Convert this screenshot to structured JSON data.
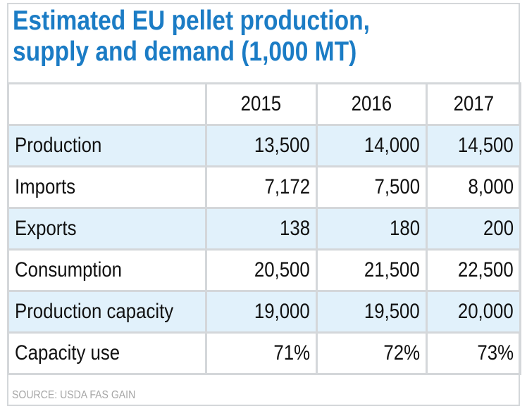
{
  "title": [
    "Estimated EU pellet production,",
    "supply and demand (1,000 MT)"
  ],
  "columns": [
    "",
    "2015",
    "2016",
    "2017"
  ],
  "rows": [
    {
      "label": "Production",
      "values": [
        "13,500",
        "14,000",
        "14,500"
      ]
    },
    {
      "label": "Imports",
      "values": [
        "7,172",
        "7,500",
        "8,000"
      ]
    },
    {
      "label": "Exports",
      "values": [
        "138",
        "180",
        "200"
      ]
    },
    {
      "label": "Consumption",
      "values": [
        "20,500",
        "21,500",
        "22,500"
      ]
    },
    {
      "label": "Production capacity",
      "values": [
        "19,000",
        "19,500",
        "20,000"
      ]
    },
    {
      "label": "Capacity use",
      "values": [
        "71%",
        "72%",
        "73%"
      ]
    }
  ],
  "source": "SOURCE: USDA FAS GAIN",
  "colors": {
    "title": "#1b7cc5",
    "shaded_row": "#e1f1fb",
    "border": "#d4d7da"
  }
}
